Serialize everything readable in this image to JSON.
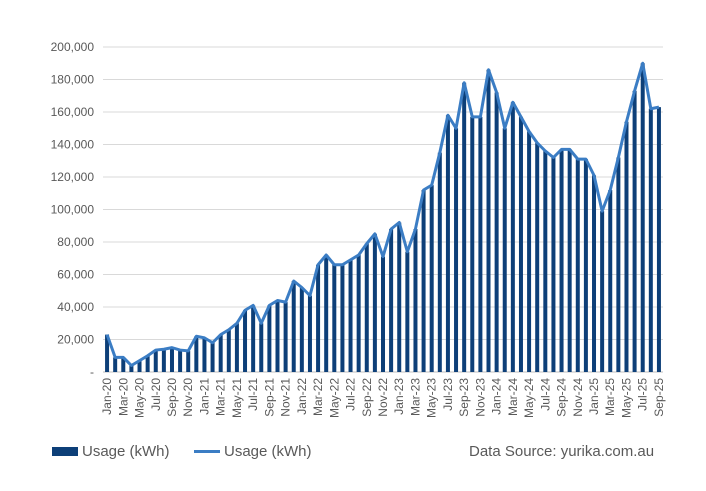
{
  "chart_data": {
    "type": "bar+line",
    "categories": [
      "Jan-20",
      "Feb-20",
      "Mar-20",
      "Apr-20",
      "May-20",
      "Jun-20",
      "Jul-20",
      "Aug-20",
      "Sep-20",
      "Oct-20",
      "Nov-20",
      "Dec-20",
      "Jan-21",
      "Feb-21",
      "Mar-21",
      "Apr-21",
      "May-21",
      "Jun-21",
      "Jul-21",
      "Aug-21",
      "Sep-21",
      "Oct-21",
      "Nov-21",
      "Dec-21",
      "Jan-22",
      "Feb-22",
      "Mar-22",
      "Apr-22",
      "May-22",
      "Jun-22",
      "Jul-22",
      "Aug-22",
      "Sep-22",
      "Oct-22",
      "Nov-22",
      "Dec-22",
      "Jan-23",
      "Feb-23",
      "Mar-23",
      "Apr-23",
      "May-23",
      "Jun-23",
      "Jul-23",
      "Aug-23",
      "Sep-23",
      "Oct-23",
      "Nov-23",
      "Dec-23",
      "Jan-24",
      "Feb-24",
      "Mar-24",
      "Apr-24",
      "May-24",
      "Jun-24",
      "Jul-24",
      "Aug-24",
      "Sep-24",
      "Oct-24",
      "Nov-24",
      "Dec-24",
      "Jan-25",
      "Feb-25",
      "Mar-25",
      "Apr-25",
      "May-25",
      "Jun-25",
      "Jul-25",
      "Aug-25",
      "Sep-25"
    ],
    "values": [
      23000,
      9000,
      9000,
      4000,
      7000,
      10000,
      13500,
      14000,
      15000,
      13500,
      13000,
      22000,
      21000,
      18000,
      23000,
      26000,
      30000,
      38000,
      41000,
      30000,
      41000,
      44000,
      43000,
      56000,
      52000,
      47000,
      66000,
      72000,
      66000,
      66000,
      69000,
      72000,
      79000,
      85000,
      71000,
      88000,
      92000,
      74000,
      88000,
      112000,
      115000,
      135000,
      158000,
      150000,
      178000,
      157000,
      157000,
      186000,
      172000,
      150000,
      166000,
      157000,
      148000,
      141000,
      136000,
      132000,
      137000,
      137000,
      131000,
      131000,
      121000,
      99000,
      112000,
      132000,
      154000,
      173000,
      190000,
      162000,
      163000
    ],
    "series": [
      {
        "name": "Usage (kWh)",
        "kind": "bar",
        "color": "#0d3f78"
      },
      {
        "name": "Usage (kWh)",
        "kind": "line",
        "color": "#3b7dc4"
      }
    ],
    "ylim": [
      0,
      200000
    ],
    "yticks": [
      0,
      20000,
      40000,
      60000,
      80000,
      100000,
      120000,
      140000,
      160000,
      180000,
      200000
    ],
    "ytick_labels": [
      "-",
      "20,000",
      "40,000",
      "60,000",
      "80,000",
      "100,000",
      "120,000",
      "140,000",
      "160,000",
      "180,000",
      "200,000"
    ],
    "xtick_step": 2,
    "grid": true,
    "legend": "bottom-left"
  },
  "source": "Data Source: yurika.com.au"
}
